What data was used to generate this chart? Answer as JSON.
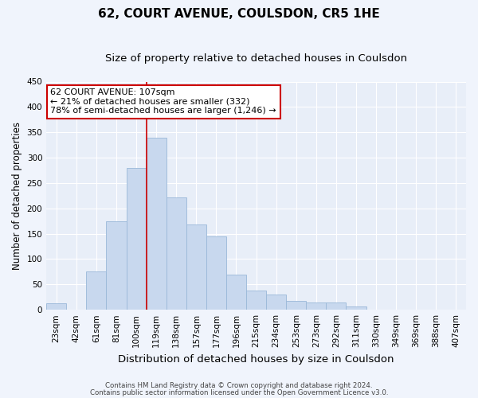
{
  "title": "62, COURT AVENUE, COULSDON, CR5 1HE",
  "subtitle": "Size of property relative to detached houses in Coulsdon",
  "xlabel": "Distribution of detached houses by size in Coulsdon",
  "ylabel": "Number of detached properties",
  "bar_labels": [
    "23sqm",
    "42sqm",
    "61sqm",
    "81sqm",
    "100sqm",
    "119sqm",
    "138sqm",
    "157sqm",
    "177sqm",
    "196sqm",
    "215sqm",
    "234sqm",
    "253sqm",
    "273sqm",
    "292sqm",
    "311sqm",
    "330sqm",
    "349sqm",
    "369sqm",
    "388sqm",
    "407sqm"
  ],
  "bar_heights": [
    13,
    0,
    75,
    175,
    280,
    340,
    222,
    168,
    145,
    70,
    38,
    30,
    18,
    15,
    15,
    7,
    0,
    0,
    0,
    0,
    0
  ],
  "bar_color": "#c8d8ee",
  "bar_edge_color": "#9ab8d8",
  "vline_x": 5.0,
  "vline_color": "#cc0000",
  "annotation_line1": "62 COURT AVENUE: 107sqm",
  "annotation_line2": "← 21% of detached houses are smaller (332)",
  "annotation_line3": "78% of semi-detached houses are larger (1,246) →",
  "annotation_box_color": "#ffffff",
  "annotation_box_edge_color": "#cc0000",
  "ylim": [
    0,
    450
  ],
  "yticks": [
    0,
    50,
    100,
    150,
    200,
    250,
    300,
    350,
    400,
    450
  ],
  "footer1": "Contains HM Land Registry data © Crown copyright and database right 2024.",
  "footer2": "Contains public sector information licensed under the Open Government Licence v3.0.",
  "bg_color": "#f0f4fc",
  "plot_bg_color": "#e8eef8",
  "grid_color": "#ffffff",
  "title_fontsize": 11,
  "subtitle_fontsize": 9.5,
  "tick_fontsize": 7.5,
  "ylabel_fontsize": 8.5,
  "xlabel_fontsize": 9.5,
  "annotation_fontsize": 8
}
